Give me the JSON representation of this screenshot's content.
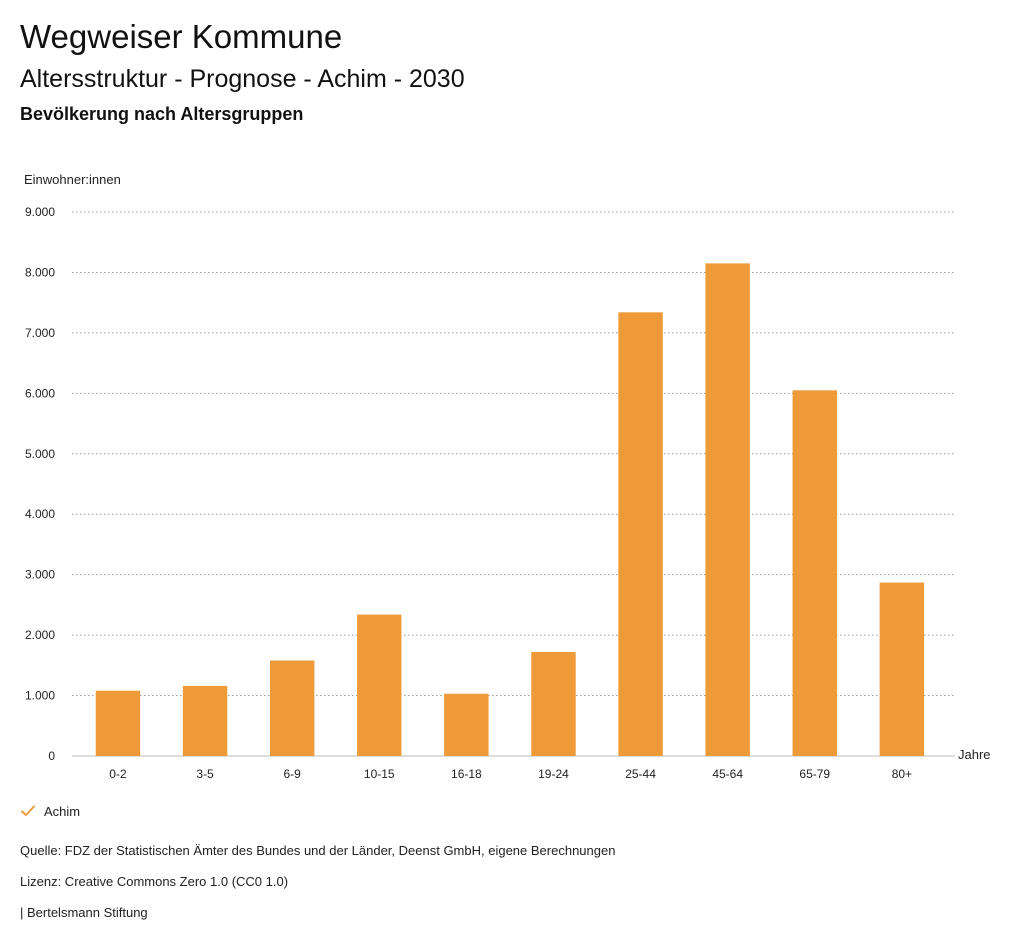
{
  "header": {
    "title": "Wegweiser Kommune",
    "subtitle": "Altersstruktur - Prognose - Achim - 2030",
    "chart_heading": "Bevölkerung nach Altersgruppen"
  },
  "chart_data": {
    "type": "bar",
    "ylabel": "Einwohner:innen",
    "xlabel": "Jahre",
    "ylim": [
      0,
      9000
    ],
    "yticks": [
      0,
      1000,
      2000,
      3000,
      4000,
      5000,
      6000,
      7000,
      8000,
      9000
    ],
    "ytick_labels": [
      "0",
      "1.000",
      "2.000",
      "3.000",
      "4.000",
      "5.000",
      "6.000",
      "7.000",
      "8.000",
      "9.000"
    ],
    "categories": [
      "0-2",
      "3-5",
      "6-9",
      "10-15",
      "16-18",
      "19-24",
      "25-44",
      "45-64",
      "65-79",
      "80+"
    ],
    "series": [
      {
        "name": "Achim",
        "color": "#ee9a38",
        "values": [
          1080,
          1160,
          1580,
          2340,
          1030,
          1720,
          7340,
          8150,
          6050,
          2870
        ]
      }
    ],
    "grid": true,
    "grid_style": "dotted",
    "legend_position": "bottom-left"
  },
  "legend": {
    "label": "Achim",
    "icon": "check-icon",
    "color": "#ee9a38"
  },
  "footer": {
    "source": "Quelle: FDZ der Statistischen Ämter des Bundes und der Länder, Deenst GmbH, eigene Berechnungen",
    "license": "Lizenz: Creative Commons Zero 1.0 (CC0 1.0)",
    "publisher": "| Bertelsmann Stiftung"
  }
}
